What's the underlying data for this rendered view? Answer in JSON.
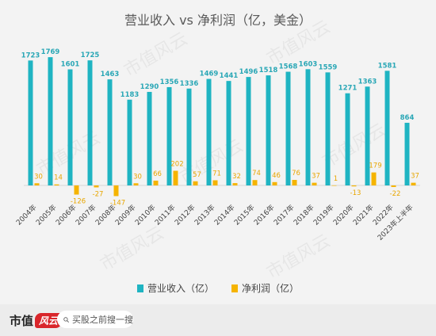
{
  "chart_data": {
    "type": "bar",
    "title": "营业收入 vs 净利润（亿，美金）",
    "categories": [
      "2004年",
      "2005年",
      "2006年",
      "2007年",
      "2008年",
      "2009年",
      "2010年",
      "2011年",
      "2012年",
      "2013年",
      "2014年",
      "2015年",
      "2016年",
      "2017年",
      "2018年",
      "2019年",
      "2020年",
      "2021年",
      "2022年",
      "2023年上半年"
    ],
    "series": [
      {
        "name": "营业收入（亿）",
        "color": "#1fb4c2",
        "values": [
          1723,
          1769,
          1601,
          1725,
          1463,
          1183,
          1290,
          1356,
          1336,
          1469,
          1441,
          1496,
          1518,
          1568,
          1603,
          1559,
          1271,
          1363,
          1581,
          864
        ]
      },
      {
        "name": "净利润（亿）",
        "color": "#f5b400",
        "values": [
          30,
          14,
          -126,
          -27,
          -147,
          30,
          66,
          202,
          57,
          71,
          32,
          74,
          46,
          76,
          37,
          1,
          -13,
          179,
          -22,
          37
        ]
      }
    ],
    "ylim": [
      -300,
      2000
    ],
    "grid": false,
    "legend_position": "bottom"
  },
  "watermark": "市值风云",
  "footer": {
    "brand": "市值",
    "brand_mark": "风云",
    "search_placeholder": "买股之前搜一搜",
    "search_icon": "search-icon"
  }
}
